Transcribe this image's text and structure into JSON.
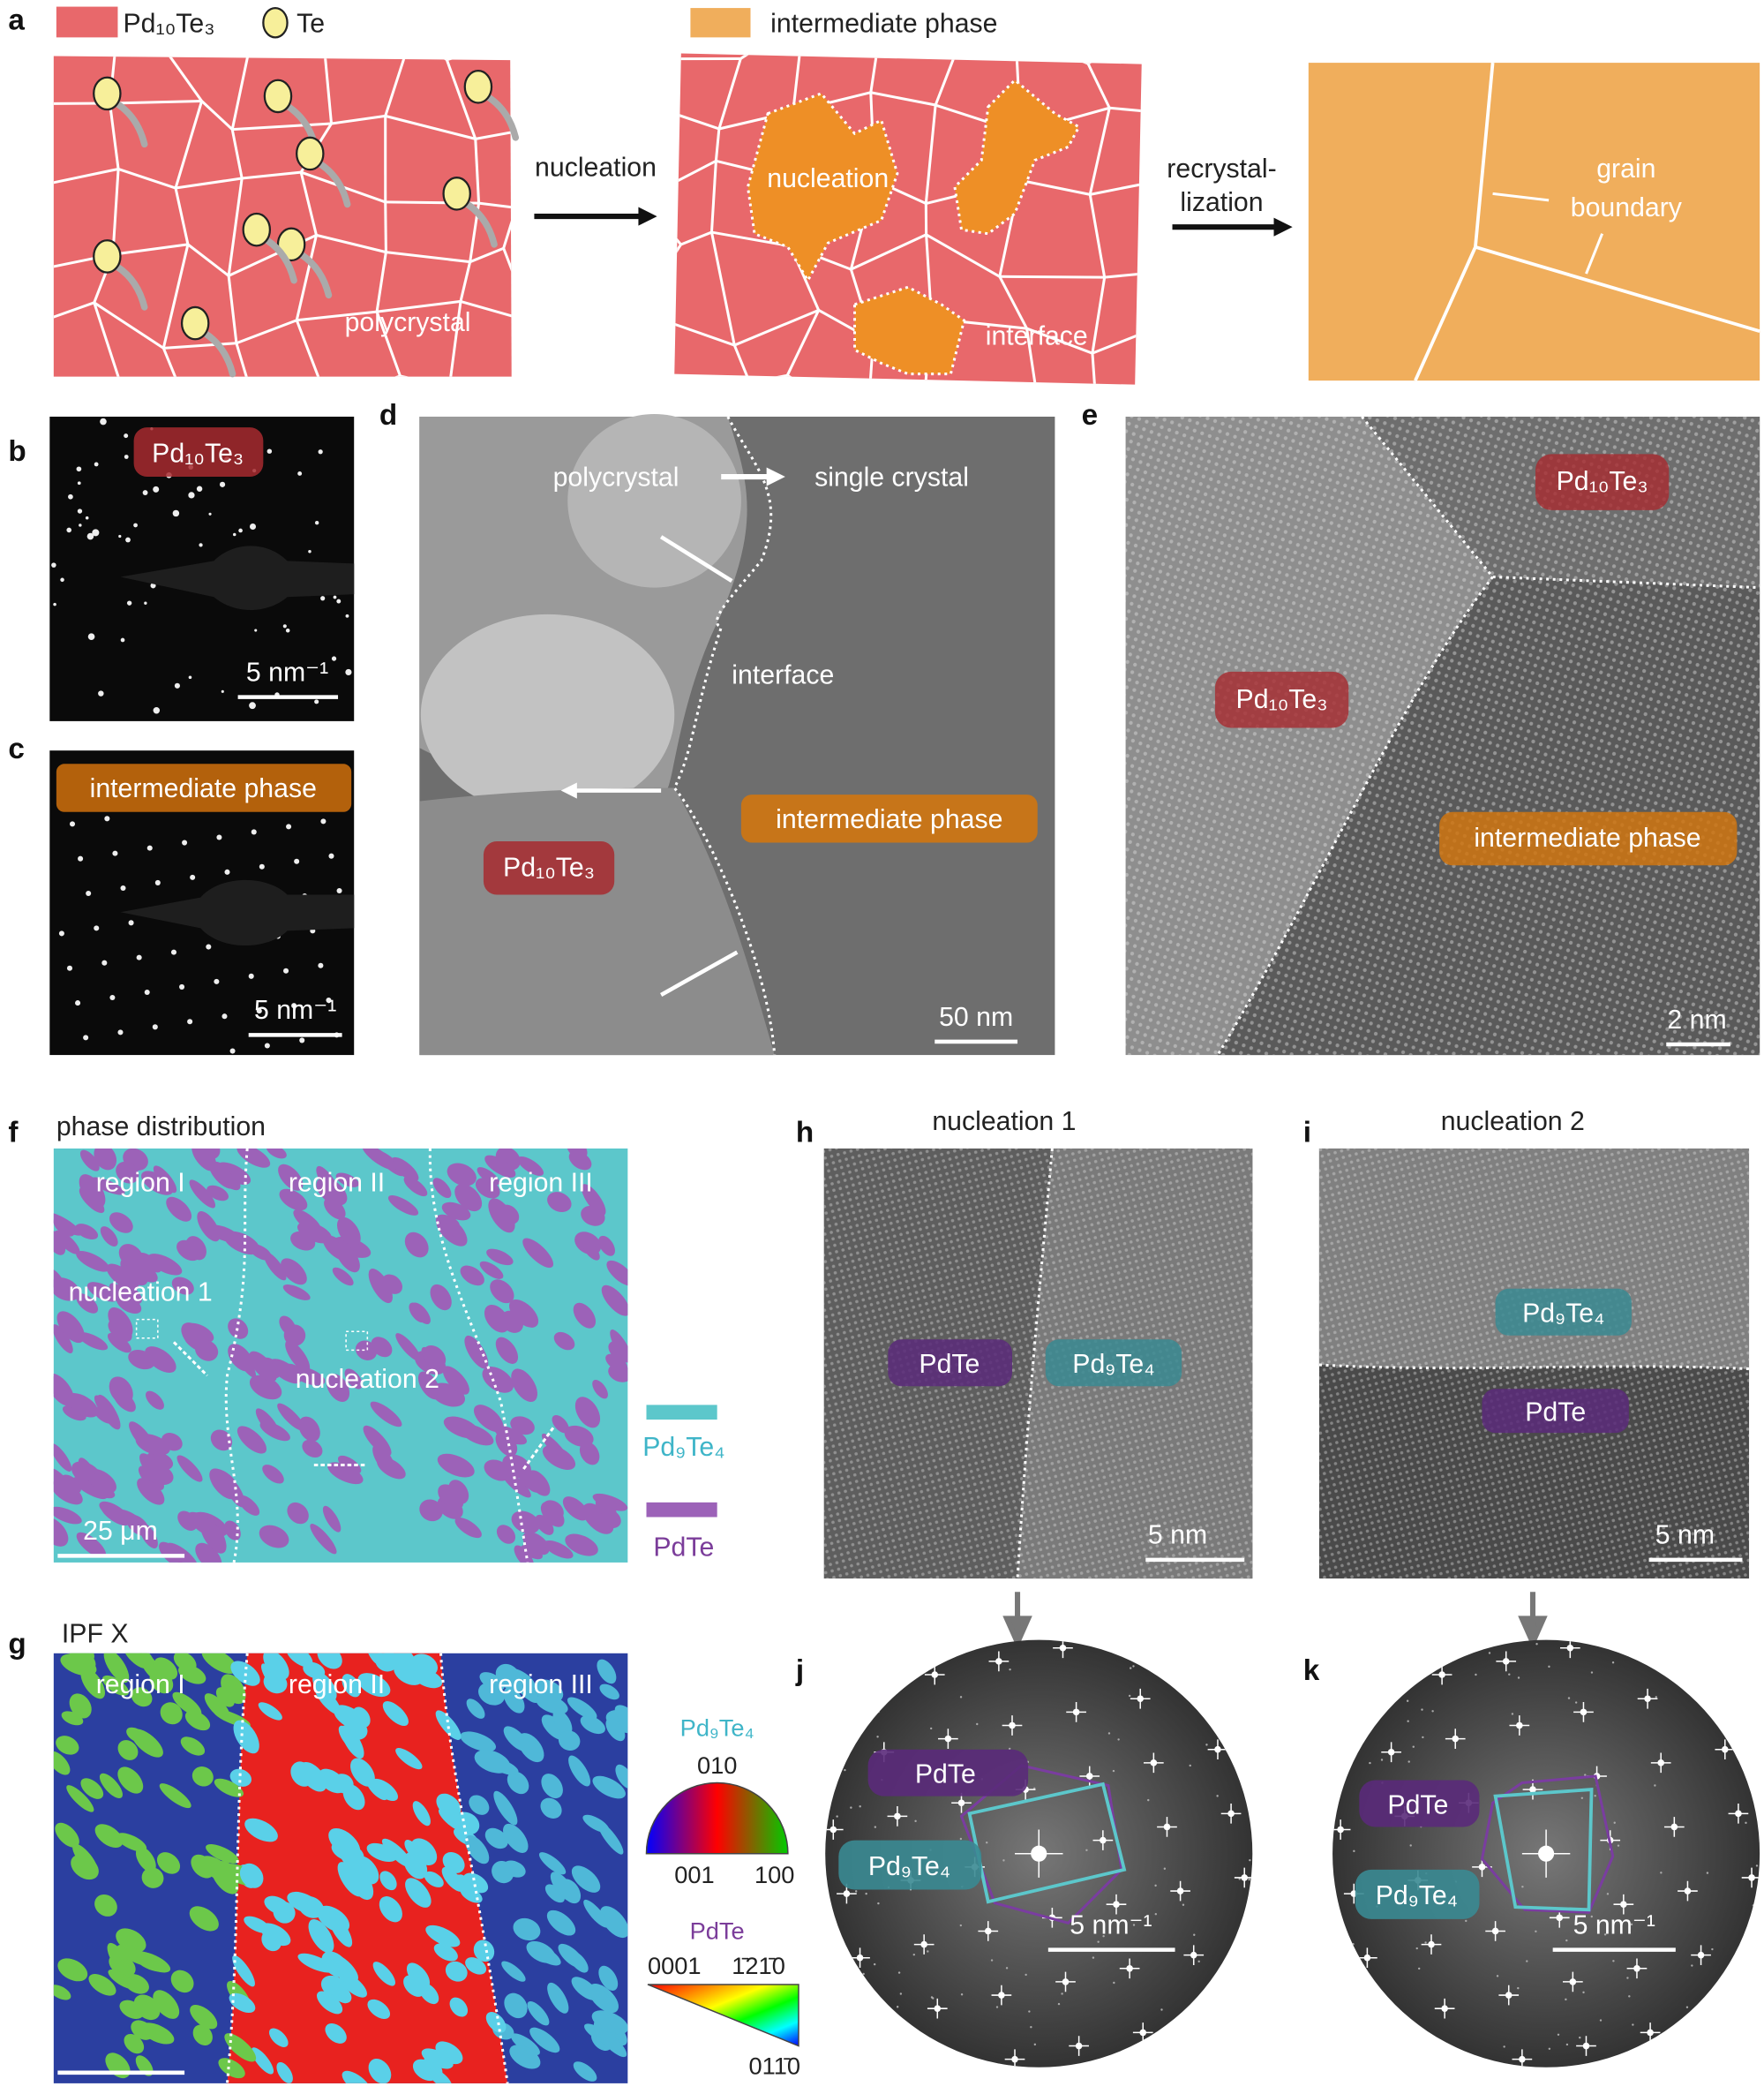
{
  "panel_letters": [
    "a",
    "b",
    "c",
    "d",
    "e",
    "f",
    "g",
    "h",
    "i",
    "j",
    "k"
  ],
  "a": {
    "legend": {
      "pd10te3": "Pd₁₀Te₃",
      "te": "Te",
      "intermediate": "intermediate phase"
    },
    "arrow_nucleation": "nucleation",
    "arrow_recrystallization": [
      "recrystal-",
      "lization"
    ],
    "polycrystal": "polycrystal",
    "nucleation": "nucleation",
    "interface": "interface",
    "grain_boundary": [
      "grain",
      "boundary"
    ]
  },
  "b": {
    "label": "Pd₁₀Te₃",
    "scale_bar": "5 nm⁻¹"
  },
  "c": {
    "label": "intermediate phase",
    "scale_bar": "5 nm⁻¹"
  },
  "d": {
    "polycrystal": "polycrystal",
    "single_crystal": "single crystal",
    "interface": "interface",
    "intermediate": "intermediate phase",
    "pd10te3": "Pd₁₀Te₃",
    "scale_bar": "50 nm"
  },
  "e": {
    "pd10te3_top": "Pd₁₀Te₃",
    "pd10te3_left": "Pd₁₀Te₃",
    "intermediate": "intermediate phase",
    "scale_bar": "2 nm"
  },
  "f": {
    "title": "phase distribution",
    "regions": [
      "region I",
      "region II",
      "region III"
    ],
    "nucleation_1": "nucleation 1",
    "nucleation_2": "nucleation 2",
    "scale_bar": "25 μm",
    "legend": [
      "Pd₉Te₄",
      "PdTe"
    ]
  },
  "g": {
    "title": "IPF X",
    "regions": [
      "region I",
      "region II",
      "region III"
    ],
    "legend": {
      "pd9te4": "Pd₉Te₄",
      "pd9te4_top": "010",
      "pd9te4_left": "001",
      "pd9te4_right": "100",
      "pdte": "PdTe",
      "pdte_left": "0001",
      "pdte_right": "1̄21̄0",
      "pdte_bottom": "011̄0"
    }
  },
  "h": {
    "title": "nucleation 1",
    "pdte": "PdTe",
    "pd9te4": "Pd₉Te₄",
    "scale_bar": "5 nm"
  },
  "i": {
    "title": "nucleation 2",
    "pd9te4": "Pd₉Te₄",
    "pdte": "PdTe",
    "scale_bar": "5 nm"
  },
  "j": {
    "pdte": "PdTe",
    "pd9te4": "Pd₉Te₄",
    "scale_bar": "5 nm⁻¹"
  },
  "k": {
    "pdte": "PdTe",
    "pd9te4": "Pd₉Te₄",
    "scale_bar": "5 nm⁻¹"
  }
}
